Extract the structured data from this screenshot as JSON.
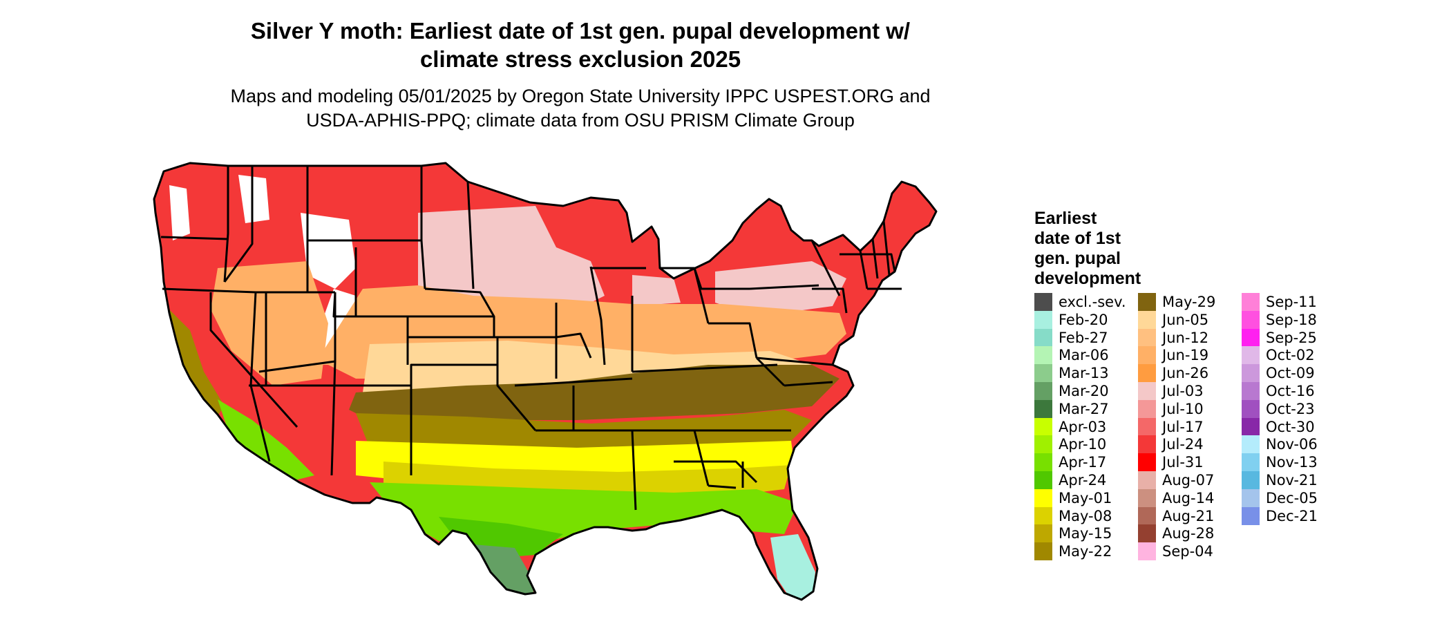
{
  "title_line1": "Silver Y moth: Earliest date of 1st gen. pupal development w/",
  "title_line2": "climate stress exclusion 2025",
  "subtitle_line1": "Maps and modeling 05/01/2025 by Oregon State University IPPC USPEST.ORG and",
  "subtitle_line2": "USDA-APHIS-PPQ; climate data from OSU PRISM Climate Group",
  "legend": {
    "title_lines": [
      "Earliest",
      "date of 1st",
      "gen. pupal",
      "development"
    ],
    "items": [
      {
        "label": "excl.-sev.",
        "color": "#4d4d4d"
      },
      {
        "label": "Feb-20",
        "color": "#a8f0e0"
      },
      {
        "label": "Feb-27",
        "color": "#86dcc8"
      },
      {
        "label": "Mar-06",
        "color": "#b4f4b4"
      },
      {
        "label": "Mar-13",
        "color": "#8ccc8c"
      },
      {
        "label": "Mar-20",
        "color": "#64a064"
      },
      {
        "label": "Mar-27",
        "color": "#3c783c"
      },
      {
        "label": "Apr-03",
        "color": "#c8ff00"
      },
      {
        "label": "Apr-10",
        "color": "#a0f000"
      },
      {
        "label": "Apr-17",
        "color": "#78e000"
      },
      {
        "label": "Apr-24",
        "color": "#50c800"
      },
      {
        "label": "May-01",
        "color": "#ffff00"
      },
      {
        "label": "May-08",
        "color": "#dcd200"
      },
      {
        "label": "May-15",
        "color": "#bea800"
      },
      {
        "label": "May-22",
        "color": "#a08800"
      },
      {
        "label": "May-29",
        "color": "#806410"
      },
      {
        "label": "Jun-05",
        "color": "#ffd898"
      },
      {
        "label": "Jun-12",
        "color": "#ffc080"
      },
      {
        "label": "Jun-19",
        "color": "#ffb066"
      },
      {
        "label": "Jun-26",
        "color": "#ff9c40"
      },
      {
        "label": "Jul-03",
        "color": "#f4c8c8"
      },
      {
        "label": "Jul-10",
        "color": "#f49898"
      },
      {
        "label": "Jul-17",
        "color": "#f46868"
      },
      {
        "label": "Jul-24",
        "color": "#f43838"
      },
      {
        "label": "Jul-31",
        "color": "#ff0000"
      },
      {
        "label": "Aug-07",
        "color": "#e8b0a8"
      },
      {
        "label": "Aug-14",
        "color": "#cc9080"
      },
      {
        "label": "Aug-21",
        "color": "#b06858"
      },
      {
        "label": "Aug-28",
        "color": "#944030"
      },
      {
        "label": "Sep-04",
        "color": "#ffb4e0"
      },
      {
        "label": "Sep-11",
        "color": "#ff80d8"
      },
      {
        "label": "Sep-18",
        "color": "#ff50e0"
      },
      {
        "label": "Sep-25",
        "color": "#ff20f0"
      },
      {
        "label": "Oct-02",
        "color": "#e0b8e8"
      },
      {
        "label": "Oct-09",
        "color": "#cc98dc"
      },
      {
        "label": "Oct-16",
        "color": "#b878d0"
      },
      {
        "label": "Oct-23",
        "color": "#a050c0"
      },
      {
        "label": "Oct-30",
        "color": "#8828a8"
      },
      {
        "label": "Nov-06",
        "color": "#b4ecfc"
      },
      {
        "label": "Nov-13",
        "color": "#80d0f0"
      },
      {
        "label": "Nov-21",
        "color": "#58b8e0"
      },
      {
        "label": "Dec-05",
        "color": "#a4c4ec"
      },
      {
        "label": "Dec-21",
        "color": "#7890e8"
      }
    ]
  },
  "map": {
    "region_colors": {
      "north": "#f43838",
      "north_light": "#f4c8c8",
      "mountain_white": "#ffffff",
      "central_orange": "#ffb066",
      "central_light": "#ffd898",
      "band_olive": "#806410",
      "band_olive2": "#a08800",
      "south_yellow": "#ffff00",
      "south_yellow2": "#dcd200",
      "gulf_green": "#78e000",
      "gulf_green2": "#50c800",
      "texas_tip": "#64a064",
      "florida_tip": "#a8f0e0",
      "state_border": "#000000"
    }
  }
}
